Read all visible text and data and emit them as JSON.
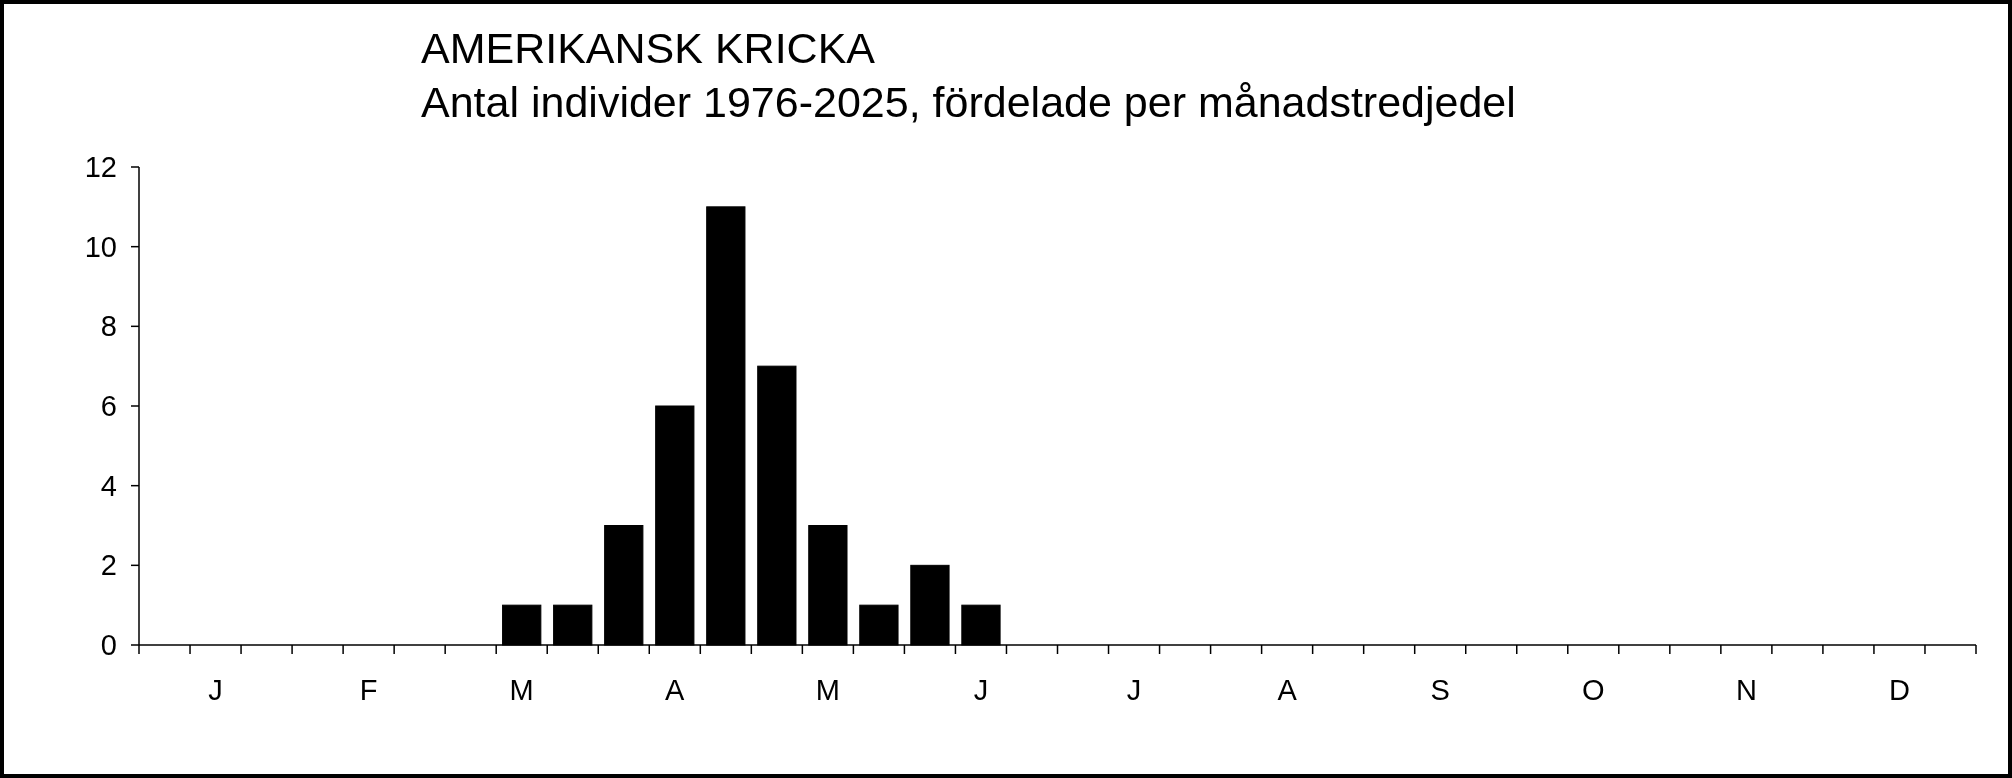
{
  "chart_data": {
    "type": "bar",
    "title": "AMERIKANSK KRICKA",
    "subtitle": "Antal individer 1976-2025, fördelade per månadstredjedel",
    "categories": [
      null,
      "J",
      null,
      null,
      "F",
      null,
      null,
      "M",
      null,
      null,
      "A",
      null,
      null,
      "M",
      null,
      null,
      "J",
      null,
      null,
      "J",
      null,
      null,
      "A",
      null,
      null,
      "S",
      null,
      null,
      "O",
      null,
      null,
      "N",
      null,
      null,
      "D",
      null
    ],
    "values": [
      0,
      0,
      0,
      0,
      0,
      0,
      0,
      1,
      1,
      3,
      6,
      11,
      7,
      3,
      1,
      2,
      1,
      0,
      0,
      0,
      0,
      0,
      0,
      0,
      0,
      0,
      0,
      0,
      0,
      0,
      0,
      0,
      0,
      0,
      0,
      0
    ],
    "color": "#000000",
    "ylim": [
      0,
      12
    ],
    "yticks": [
      0,
      2,
      4,
      6,
      8,
      10,
      12
    ],
    "grid": false
  }
}
